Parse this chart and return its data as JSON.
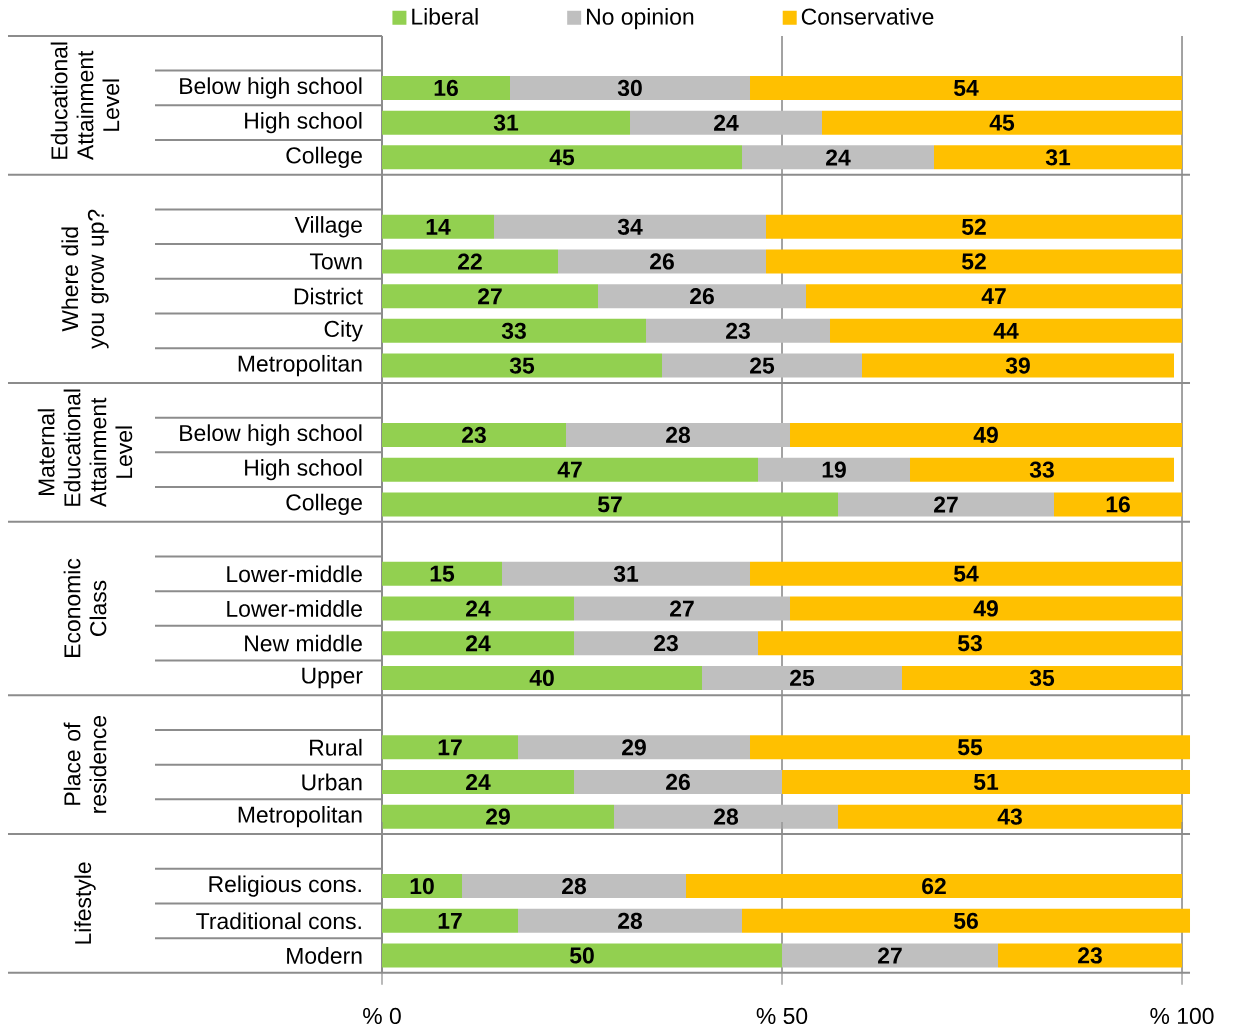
{
  "chart_data": [
    {
      "type": "bar",
      "orientation": "horizontal",
      "stacked": true,
      "title": "Educational Attainment Level",
      "categories": [
        "Below high school",
        "High school",
        "College"
      ],
      "series": [
        {
          "name": "Liberal",
          "color": "#92d050",
          "values": [
            16,
            31,
            45
          ]
        },
        {
          "name": "No opinion",
          "color": "#bfbfbf",
          "values": [
            30,
            24,
            24
          ]
        },
        {
          "name": "Conservative",
          "color": "#ffc000",
          "values": [
            54,
            45,
            31
          ]
        }
      ],
      "xlim": [
        0,
        101
      ],
      "xticks": [
        {
          "value": 0,
          "label": null
        },
        {
          "value": 50,
          "label": null
        },
        {
          "value": 100,
          "label": null
        }
      ],
      "grid": "x",
      "legend": "top",
      "data_labels": true,
      "tick_labels": "y"
    },
    {
      "type": "bar",
      "orientation": "horizontal",
      "stacked": true,
      "title": "Where did you grow up?",
      "categories": [
        "Village",
        "Town",
        "District",
        "City",
        "Metropolitan"
      ],
      "series": [
        {
          "color": "#92d050",
          "values": [
            14,
            22,
            27,
            33,
            35
          ]
        },
        {
          "color": "#bfbfbf",
          "values": [
            34,
            26,
            26,
            23,
            25
          ]
        },
        {
          "color": "#ffc000",
          "values": [
            52,
            52,
            47,
            44,
            39
          ]
        }
      ],
      "xlim": [
        0,
        101
      ],
      "xticks": [
        {
          "value": 0,
          "label": null
        },
        {
          "value": 50,
          "label": null
        },
        {
          "value": 100,
          "label": null
        }
      ],
      "grid": "x",
      "data_labels": true,
      "tick_labels": "y"
    },
    {
      "type": "bar",
      "orientation": "horizontal",
      "stacked": true,
      "title": "Maternal Educational Attainment Level",
      "categories": [
        "Below high school",
        "High school",
        "College"
      ],
      "series": [
        {
          "color": "#92d050",
          "values": [
            23,
            47,
            57
          ]
        },
        {
          "color": "#bfbfbf",
          "values": [
            28,
            19,
            27
          ]
        },
        {
          "color": "#ffc000",
          "values": [
            49,
            33,
            16
          ]
        }
      ],
      "xlim": [
        0,
        101
      ],
      "xticks": [
        {
          "value": 0,
          "label": null
        },
        {
          "value": 50,
          "label": null
        },
        {
          "value": 100,
          "label": null
        }
      ],
      "grid": "x",
      "data_labels": true,
      "tick_labels": "y"
    },
    {
      "type": "bar",
      "orientation": "horizontal",
      "stacked": true,
      "title": "Economic Class",
      "categories": [
        "Lower-middle",
        "Lower-middle",
        "New middle",
        "Upper"
      ],
      "series": [
        {
          "color": "#92d050",
          "values": [
            15,
            24,
            24,
            40
          ]
        },
        {
          "color": "#bfbfbf",
          "values": [
            31,
            27,
            23,
            25
          ]
        },
        {
          "color": "#ffc000",
          "values": [
            54,
            49,
            53,
            35
          ]
        }
      ],
      "xlim": [
        0,
        101
      ],
      "xticks": [
        {
          "value": 0,
          "label": null
        },
        {
          "value": 50,
          "label": null
        },
        {
          "value": 100,
          "label": null
        }
      ],
      "grid": "x",
      "data_labels": true,
      "tick_labels": "y"
    },
    {
      "type": "bar",
      "orientation": "horizontal",
      "stacked": true,
      "title": "Place of residence",
      "categories": [
        "Rural",
        "Urban",
        "Metropolitan"
      ],
      "series": [
        {
          "color": "#92d050",
          "values": [
            17,
            24,
            29
          ]
        },
        {
          "color": "#bfbfbf",
          "values": [
            29,
            26,
            28
          ]
        },
        {
          "color": "#ffc000",
          "values": [
            55,
            51,
            43
          ]
        }
      ],
      "xlim": [
        0,
        101
      ],
      "xticks": [
        {
          "value": 0,
          "label": null
        },
        {
          "value": 50,
          "label": null
        },
        {
          "value": 100,
          "label": null
        }
      ],
      "grid": "x",
      "data_labels": true,
      "tick_labels": "y"
    },
    {
      "type": "bar",
      "orientation": "horizontal",
      "stacked": true,
      "title": "Lifestyle",
      "categories": [
        "Religious cons.",
        "Traditional cons.",
        "Modern"
      ],
      "series": [
        {
          "color": "#92d050",
          "values": [
            10,
            17,
            50
          ]
        },
        {
          "color": "#bfbfbf",
          "values": [
            28,
            28,
            27
          ]
        },
        {
          "color": "#ffc000",
          "values": [
            62,
            56,
            23
          ]
        }
      ],
      "xlim": [
        0,
        101
      ],
      "xticks": [
        {
          "value": 0,
          "label": "% 0"
        },
        {
          "value": 50,
          "label": "% 50"
        },
        {
          "value": 100,
          "label": "% 100"
        }
      ],
      "grid": "x",
      "data_labels": true
    }
  ]
}
